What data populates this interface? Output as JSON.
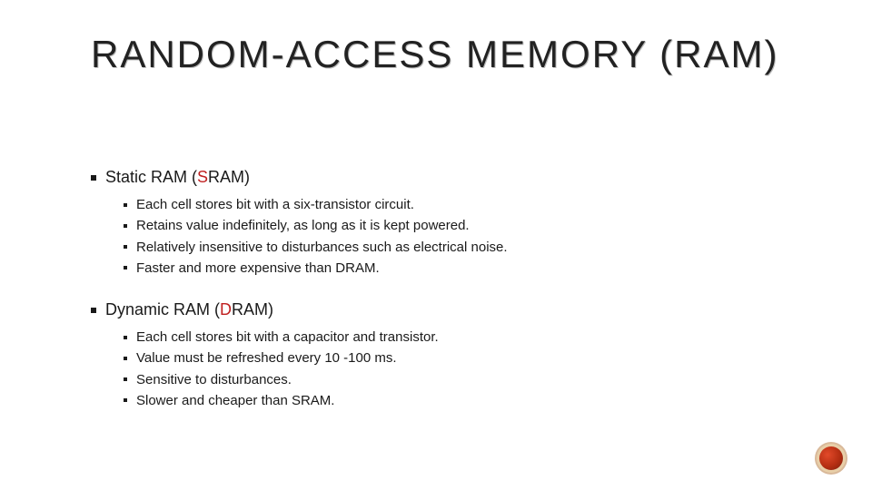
{
  "title": "RANDOM-ACCESS MEMORY (RAM)",
  "sections": [
    {
      "heading_prefix": "Static RAM (",
      "heading_abbrev_letter": "S",
      "heading_abbrev_rest": "RAM",
      "heading_suffix": ")",
      "items": [
        "Each cell stores bit with a six-transistor circuit.",
        "Retains value indefinitely, as long as it is kept powered.",
        "Relatively insensitive to disturbances such as electrical noise.",
        "Faster and more expensive than DRAM."
      ]
    },
    {
      "heading_prefix": "Dynamic RAM (",
      "heading_abbrev_letter": "D",
      "heading_abbrev_rest": "RAM",
      "heading_suffix": ")",
      "items": [
        "Each cell stores bit with a capacitor and transistor.",
        "Value must be refreshed every 10 -100 ms.",
        "Sensitive to disturbances.",
        "Slower and cheaper than SRAM."
      ]
    }
  ],
  "colors": {
    "abbrev_highlight": "#c02020",
    "text": "#1a1a1a",
    "background": "#ffffff"
  }
}
